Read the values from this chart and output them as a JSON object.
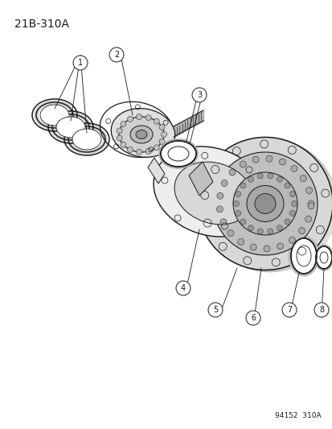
{
  "title_code": "21B-310A",
  "footer_code": "94152  310A",
  "background_color": "#ffffff",
  "line_color": "#1a1a1a",
  "title_fontsize": 10,
  "footer_fontsize": 6.5,
  "label_fontsize": 7
}
